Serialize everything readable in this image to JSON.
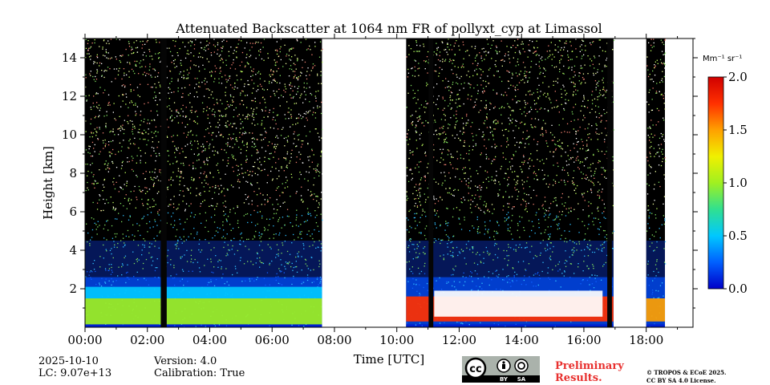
{
  "chart_data": {
    "type": "heatmap",
    "title": "Attenuated Backscatter at 1064 nm FR of pollyxt_cyp at Limassol",
    "xlabel": "Time [UTC]",
    "ylabel": "Height [km]",
    "xlim_hours": [
      0,
      19.5
    ],
    "ylim_km": [
      0,
      15
    ],
    "x_ticks": [
      "00:00",
      "02:00",
      "04:00",
      "06:00",
      "08:00",
      "10:00",
      "12:00",
      "14:00",
      "16:00",
      "18:00"
    ],
    "x_tick_hours": [
      0,
      2,
      4,
      6,
      8,
      10,
      12,
      14,
      16,
      18
    ],
    "y_ticks": [
      "2",
      "4",
      "6",
      "8",
      "10",
      "12",
      "14"
    ],
    "y_tick_values": [
      2,
      4,
      6,
      8,
      10,
      12,
      14
    ],
    "colorbar": {
      "unit": "Mm⁻¹ sr⁻¹",
      "range": [
        0.0,
        2.0
      ],
      "ticks": [
        "0.0",
        "0.5",
        "1.0",
        "1.5",
        "2.0"
      ],
      "tick_values": [
        0.0,
        0.5,
        1.0,
        1.5,
        2.0
      ],
      "colormap": [
        "#0000c8",
        "#0060ff",
        "#00c8ff",
        "#30e090",
        "#a0f020",
        "#f0f000",
        "#ffa000",
        "#ff3000",
        "#d00000"
      ]
    },
    "data_segments_hours": [
      [
        0,
        7.6
      ],
      [
        10.3,
        16.95
      ],
      [
        18.0,
        18.6
      ]
    ],
    "no_data_gaps_hours": [
      [
        7.6,
        10.3
      ],
      [
        16.95,
        18.0
      ],
      [
        18.6,
        19.5
      ]
    ],
    "dark_stripes_hours": [
      [
        2.43,
        2.62
      ],
      [
        11.02,
        11.17
      ],
      [
        16.75,
        16.9
      ]
    ],
    "layers": [
      {
        "from_h": 0,
        "to_h": 7.6,
        "base_km": 0.15,
        "top_km": 1.5,
        "level": 1.05
      },
      {
        "from_h": 0,
        "to_h": 7.6,
        "base_km": 1.5,
        "top_km": 2.1,
        "level": 0.45
      },
      {
        "from_h": 10.3,
        "to_h": 16.95,
        "base_km": 0.3,
        "top_km": 1.6,
        "level": 1.7
      },
      {
        "from_h": 11.2,
        "to_h": 16.6,
        "base_km": 0.55,
        "top_km": 1.9,
        "level": 2.2
      },
      {
        "from_h": 18.0,
        "to_h": 18.6,
        "base_km": 0.3,
        "top_km": 1.5,
        "level": 1.6
      }
    ]
  },
  "footer": {
    "date": "2025-10-10",
    "lc": "LC: 9.07e+13",
    "version": "Version: 4.0",
    "calibration": "Calibration: True",
    "preliminary": "Preliminary",
    "results": "Results.",
    "copyright_line1": "© TROPOS & ECoE 2025.",
    "copyright_line2": "CC BY SA 4.0 License.",
    "license_badge": {
      "by": "BY",
      "sa": "SA",
      "cc": "cc"
    }
  }
}
